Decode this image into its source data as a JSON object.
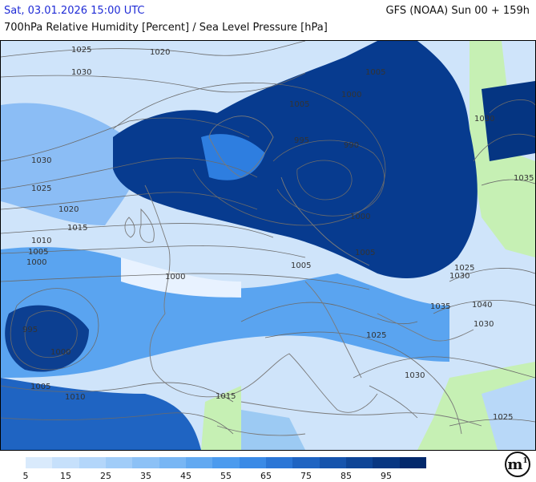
{
  "header": {
    "valid_time": "Sat, 03.01.2026 15:00 UTC",
    "parameter": "700hPa Relative Humidity [Percent] / Sea Level Pressure [hPa]",
    "model_run": "GFS (NOAA) Sun 00 + 159h"
  },
  "map": {
    "isobar_labels": [
      "1025",
      "1020",
      "1030",
      "1030",
      "1025",
      "1020",
      "1015",
      "1010",
      "1005",
      "1000",
      "995",
      "1000",
      "1005",
      "1010",
      "1015",
      "1005",
      "1000",
      "1005",
      "995",
      "990",
      "1000",
      "1005",
      "1005",
      "1000",
      "1030",
      "1035",
      "1025",
      "1030",
      "1035",
      "1030",
      "1040",
      "1025",
      "1030",
      "1025"
    ]
  },
  "legend": {
    "colors": [
      "#d9eafc",
      "#c6e0fb",
      "#b3d6fa",
      "#a0ccf8",
      "#8cc1f6",
      "#78b6f4",
      "#62a9f1",
      "#4c9bee",
      "#3a8ae6",
      "#2b76d6",
      "#1f64c2",
      "#1654ad",
      "#0e4597",
      "#083782",
      "#03296c"
    ],
    "labels": [
      "5",
      "15",
      "25",
      "35",
      "45",
      "55",
      "65",
      "75",
      "85",
      "95"
    ]
  },
  "logo": {
    "text": "m",
    "superscript": "1"
  }
}
